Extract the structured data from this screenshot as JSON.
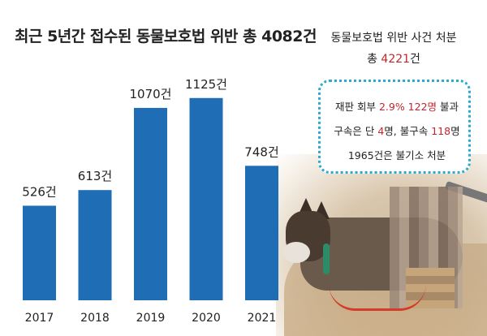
{
  "chart_data": {
    "type": "bar",
    "title": "최근 5년간 접수된 동물보호법 위반 총 4082건",
    "categories": [
      "2017",
      "2018",
      "2019",
      "2020",
      "2021"
    ],
    "values": [
      526,
      613,
      1070,
      1125,
      748
    ],
    "data_labels": [
      "526건",
      "613건",
      "1070건",
      "1125건",
      "748건"
    ],
    "ylim": [
      0,
      1300
    ],
    "grid": false,
    "bar_color": "#1f6db5",
    "xlabel": "",
    "ylabel": ""
  },
  "summary": {
    "line1": "동물보호법 위반 사건 처분",
    "line2_prefix": "총 ",
    "line2_value": "4221",
    "line2_suffix": "건"
  },
  "callout": {
    "line1_a": "재판 회부 ",
    "line1_b": "2.9% 122명",
    "line1_c": " 불과",
    "line2_a": "구속은 단 ",
    "line2_b": "4",
    "line2_c": "명, 불구속 ",
    "line2_d": "118",
    "line2_e": "명",
    "line3": "1965건은 불기소 처분",
    "border_color": "#2ea8cf",
    "highlight_color": "#c0272d"
  },
  "photo": {
    "description_icon": "dog-photo"
  }
}
